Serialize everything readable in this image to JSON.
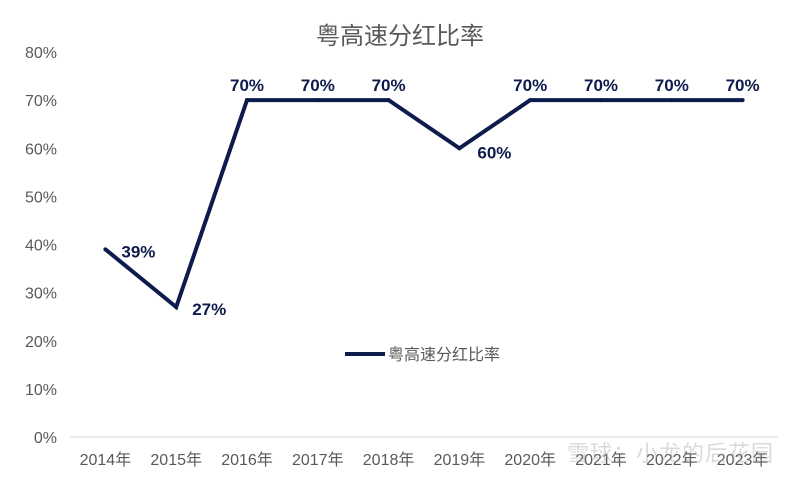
{
  "chart_data": {
    "type": "line",
    "title": "粤高速分红比率",
    "categories": [
      "2014年",
      "2015年",
      "2016年",
      "2017年",
      "2018年",
      "2019年",
      "2020年",
      "2021年",
      "2022年",
      "2023年"
    ],
    "series": [
      {
        "name": "粤高速分红比率",
        "values": [
          39,
          27,
          70,
          70,
          70,
          60,
          70,
          70,
          70,
          70
        ],
        "data_labels": [
          "39%",
          "27%",
          "70%",
          "70%",
          "70%",
          "60%",
          "70%",
          "70%",
          "70%",
          "70%"
        ]
      }
    ],
    "ylim": [
      0,
      80
    ],
    "yticks": [
      "0%",
      "10%",
      "20%",
      "30%",
      "40%",
      "50%",
      "60%",
      "70%",
      "80%"
    ],
    "grid": false,
    "legend_position": "center",
    "colors": {
      "line": "#0d1b4d",
      "axis": "#d9d9d9",
      "text": "#595959"
    }
  },
  "watermark": "雪球：小龙的后花园"
}
